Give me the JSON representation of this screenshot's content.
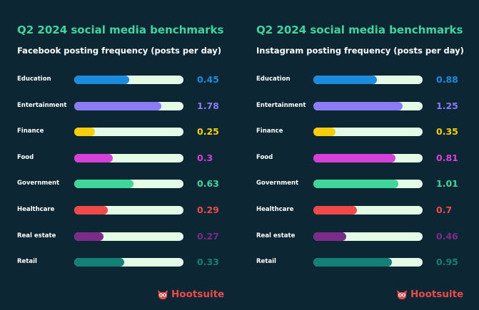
{
  "chart_data": [
    {
      "type": "bar",
      "title": "Q2 2024 social media benchmarks",
      "subtitle": "Facebook posting frequency (posts per day)",
      "categories": [
        "Education",
        "Entertainment",
        "Finance",
        "Food",
        "Government",
        "Healthcare",
        "Real estate",
        "Retail"
      ],
      "values": [
        0.45,
        1.78,
        0.25,
        0.3,
        0.63,
        0.29,
        0.27,
        0.33
      ],
      "value_labels": [
        "0.45",
        "1.78",
        "0.25",
        "0.3",
        "0.63",
        "0.29",
        "0.27",
        "0.33"
      ],
      "bar_fill_percent": [
        50,
        80,
        19,
        35,
        54,
        31,
        27,
        46
      ],
      "orientation": "horizontal"
    },
    {
      "type": "bar",
      "title": "Q2 2024 social media benchmarks",
      "subtitle": "Instagram posting frequency (posts per day)",
      "categories": [
        "Education",
        "Entertainment",
        "Finance",
        "Food",
        "Government",
        "Healthcare",
        "Real estate",
        "Retail"
      ],
      "values": [
        0.88,
        1.25,
        0.35,
        0.81,
        1.01,
        0.7,
        0.46,
        0.95
      ],
      "value_labels": [
        "0.88",
        "1.25",
        "0.35",
        "0.81",
        "1.01",
        "0.7",
        "0.46",
        "0.95"
      ],
      "bar_fill_percent": [
        58,
        82,
        20,
        75,
        78,
        40,
        30,
        72
      ],
      "orientation": "horizontal"
    }
  ],
  "category_colors": [
    "#1b8be0",
    "#8b7cf6",
    "#f7ce0a",
    "#d63fd8",
    "#3fd69a",
    "#f04a48",
    "#7b2b8a",
    "#148076"
  ],
  "colors": {
    "background": "#0c2733",
    "title": "#3fd69e",
    "track": "#e4fbe6",
    "brand": "#f04a48"
  },
  "brand": {
    "logo_text": "Hootsuite",
    "icon": "owl-icon"
  }
}
